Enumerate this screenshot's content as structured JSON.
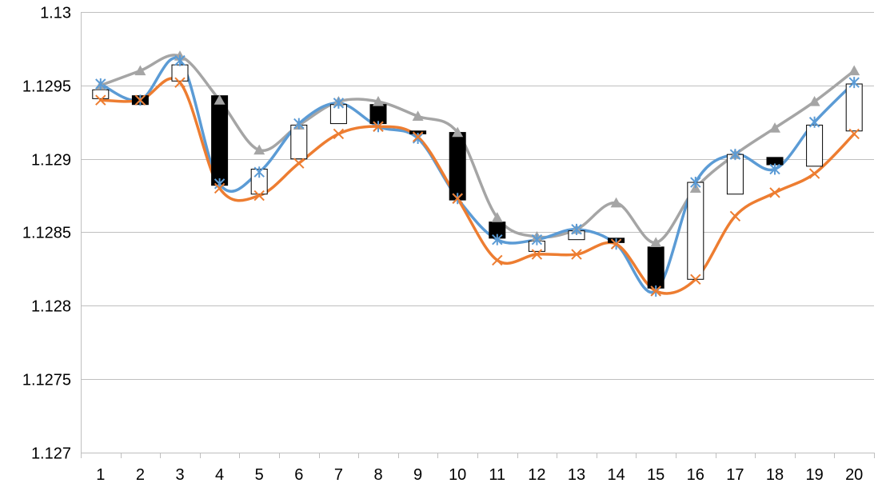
{
  "chart_data": {
    "type": "stock-candlestick-with-lines",
    "title": "",
    "xlabel": "",
    "ylabel": "",
    "categories": [
      "1",
      "2",
      "3",
      "4",
      "5",
      "6",
      "7",
      "8",
      "9",
      "10",
      "11",
      "12",
      "13",
      "14",
      "15",
      "16",
      "17",
      "18",
      "19",
      "20"
    ],
    "y_ticks": [
      "1.127",
      "1.1275",
      "1.128",
      "1.1285",
      "1.129",
      "1.1295",
      "1.13"
    ],
    "y_tick_values": [
      1.127,
      1.1275,
      1.128,
      1.1285,
      1.129,
      1.1295,
      1.13
    ],
    "ylim": [
      1.127,
      1.13
    ],
    "grid": true,
    "legend": "none",
    "ohlc": {
      "open": [
        1.12941,
        1.12943,
        1.12953,
        1.12943,
        1.12876,
        1.129,
        1.12924,
        1.12937,
        1.12919,
        1.12918,
        1.12857,
        1.12837,
        1.12845,
        1.12846,
        1.1284,
        1.12818,
        1.12876,
        1.12901,
        1.12895,
        1.12919
      ],
      "close": [
        1.12947,
        1.12937,
        1.12964,
        1.12882,
        1.12893,
        1.12923,
        1.12937,
        1.12924,
        1.12917,
        1.12872,
        1.12846,
        1.12844,
        1.12851,
        1.12843,
        1.12812,
        1.12884,
        1.12903,
        1.12896,
        1.12923,
        1.12951
      ]
    },
    "series": [
      {
        "name": "",
        "color": "#a5a5a5",
        "marker": "triangle",
        "values": [
          1.1295,
          1.1296,
          1.1297,
          1.1294,
          1.12906,
          1.12923,
          1.12939,
          1.12939,
          1.12929,
          1.12918,
          1.1286,
          1.12847,
          1.12852,
          1.1287,
          1.12843,
          1.1288,
          1.12903,
          1.12921,
          1.12939,
          1.1296
        ]
      },
      {
        "name": "",
        "color": "#5b9bd5",
        "marker": "star",
        "values": [
          1.12951,
          1.1294,
          1.12967,
          1.12883,
          1.12891,
          1.12924,
          1.12938,
          1.12922,
          1.12914,
          1.12873,
          1.12845,
          1.12845,
          1.12852,
          1.12842,
          1.1281,
          1.12884,
          1.12903,
          1.12893,
          1.12925,
          1.12952
        ]
      },
      {
        "name": "",
        "color": "#ed7d31",
        "marker": "x",
        "values": [
          1.1294,
          1.1294,
          1.12952,
          1.1288,
          1.12875,
          1.12897,
          1.12917,
          1.12922,
          1.12915,
          1.12873,
          1.12831,
          1.12835,
          1.12835,
          1.12842,
          1.1281,
          1.12818,
          1.12861,
          1.12877,
          1.1289,
          1.12917
        ]
      }
    ],
    "series_points": {
      "high_colors": {
        "marker": "#ed7d31"
      }
    }
  }
}
